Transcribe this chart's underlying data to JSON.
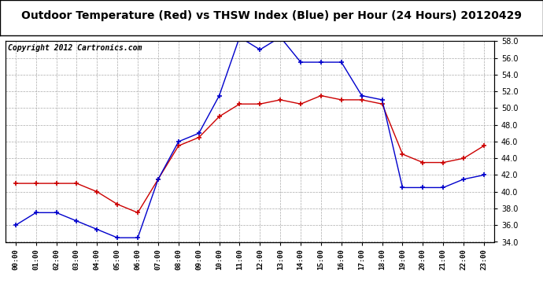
{
  "title": "Outdoor Temperature (Red) vs THSW Index (Blue) per Hour (24 Hours) 20120429",
  "copyright": "Copyright 2012 Cartronics.com",
  "hours": [
    "00:00",
    "01:00",
    "02:00",
    "03:00",
    "04:00",
    "05:00",
    "06:00",
    "07:00",
    "08:00",
    "09:00",
    "10:00",
    "11:00",
    "12:00",
    "13:00",
    "14:00",
    "15:00",
    "16:00",
    "17:00",
    "18:00",
    "19:00",
    "20:00",
    "21:00",
    "22:00",
    "23:00"
  ],
  "red_temp": [
    41.0,
    41.0,
    41.0,
    41.0,
    40.0,
    38.5,
    37.5,
    41.5,
    45.5,
    46.5,
    49.0,
    50.5,
    50.5,
    51.0,
    50.5,
    51.5,
    51.0,
    51.0,
    50.5,
    44.5,
    43.5,
    43.5,
    44.0,
    45.5
  ],
  "blue_thsw": [
    36.0,
    37.5,
    37.5,
    36.5,
    35.5,
    34.5,
    34.5,
    41.5,
    46.0,
    47.0,
    51.5,
    58.5,
    57.0,
    58.5,
    55.5,
    55.5,
    55.5,
    51.5,
    51.0,
    40.5,
    40.5,
    40.5,
    41.5,
    42.0
  ],
  "ylim": [
    34.0,
    58.0
  ],
  "yticks": [
    34.0,
    36.0,
    38.0,
    40.0,
    42.0,
    44.0,
    46.0,
    48.0,
    50.0,
    52.0,
    54.0,
    56.0,
    58.0
  ],
  "red_color": "#cc0000",
  "blue_color": "#0000cc",
  "bg_color": "#ffffff",
  "grid_color": "#aaaaaa",
  "title_fontsize": 10,
  "copyright_fontsize": 7
}
